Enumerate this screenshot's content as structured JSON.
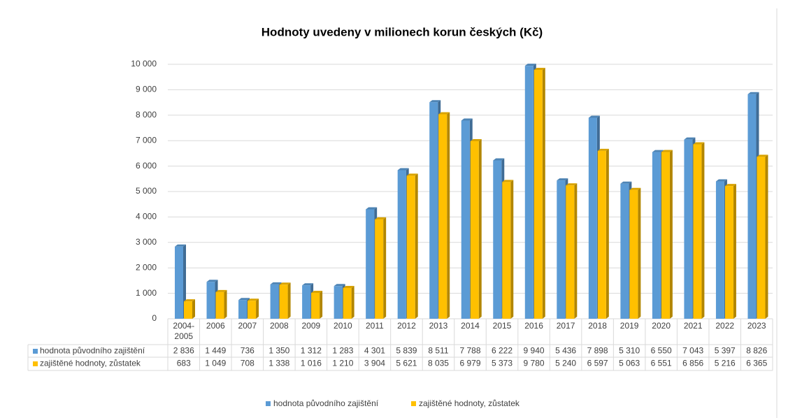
{
  "chart_data": {
    "type": "bar",
    "title": "Hodnoty uvedeny v milionech korun českých (Kč)",
    "categories": [
      "2004-2005",
      "2006",
      "2007",
      "2008",
      "2009",
      "2010",
      "2011",
      "2012",
      "2013",
      "2014",
      "2015",
      "2016",
      "2017",
      "2018",
      "2019",
      "2020",
      "2021",
      "2022",
      "2023"
    ],
    "series": [
      {
        "name": "hodnota původního zajištění",
        "color": "#5b9bd5",
        "values": [
          2836,
          1449,
          736,
          1350,
          1312,
          1283,
          4301,
          5839,
          8511,
          7788,
          6222,
          9940,
          5436,
          7898,
          5310,
          6550,
          7043,
          5397,
          8826
        ],
        "value_labels": [
          "2 836",
          "1 449",
          "736",
          "1 350",
          "1 312",
          "1 283",
          "4 301",
          "5 839",
          "8 511",
          "7 788",
          "6 222",
          "9 940",
          "5 436",
          "7 898",
          "5 310",
          "6 550",
          "7 043",
          "5 397",
          "8 826"
        ]
      },
      {
        "name": "zajištěné hodnoty, zůstatek",
        "color": "#ffc000",
        "values": [
          683,
          1049,
          708,
          1338,
          1016,
          1210,
          3904,
          5621,
          8035,
          6979,
          5373,
          9780,
          5240,
          6597,
          5063,
          6551,
          6856,
          5216,
          6365
        ],
        "value_labels": [
          "683",
          "1 049",
          "708",
          "1 338",
          "1 016",
          "1 210",
          "3 904",
          "5 621",
          "8 035",
          "6 979",
          "5 373",
          "9 780",
          "5 240",
          "6 597",
          "5 063",
          "6 551",
          "6 856",
          "5 216",
          "6 365"
        ]
      }
    ],
    "ylim": [
      0,
      10000
    ],
    "yticks": [
      0,
      {
        "value": 1000,
        "label": "1 000"
      },
      {
        "value": 2000,
        "label": "2 000"
      },
      {
        "value": 3000,
        "label": "3 000"
      },
      {
        "value": 4000,
        "label": "4 000"
      },
      {
        "value": 5000,
        "label": "5 000"
      },
      {
        "value": 6000,
        "label": "6 000"
      },
      {
        "value": 7000,
        "label": "7 000"
      },
      {
        "value": 8000,
        "label": "8 000"
      },
      {
        "value": 9000,
        "label": "9 000"
      },
      {
        "value": 10000,
        "label": "10 000"
      }
    ],
    "grid": true
  }
}
